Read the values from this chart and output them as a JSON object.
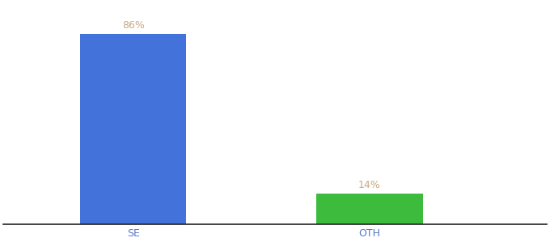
{
  "categories": [
    "SE",
    "OTH"
  ],
  "values": [
    86,
    14
  ],
  "bar_colors": [
    "#4472db",
    "#3dbb3d"
  ],
  "label_color": "#c8a882",
  "tick_color": "#5577cc",
  "background_color": "#ffffff",
  "ylim": [
    0,
    100
  ],
  "bar_width": 0.45,
  "label_fontsize": 9,
  "tick_fontsize": 9,
  "value_format": "{}%",
  "x_positions": [
    1,
    2
  ],
  "xlim": [
    0.45,
    2.75
  ]
}
